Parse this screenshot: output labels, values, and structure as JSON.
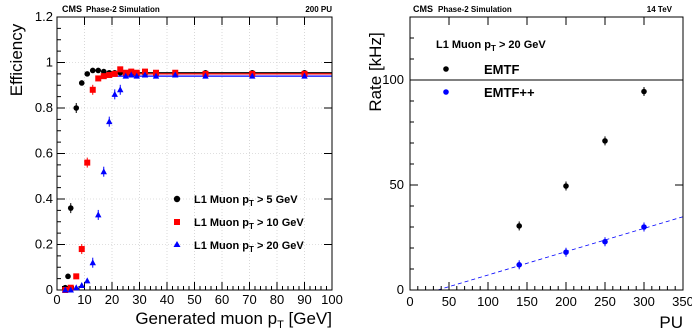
{
  "chart_data": [
    {
      "type": "scatter",
      "header": {
        "experiment": "CMS",
        "label": "Phase-2 Simulation",
        "right": "200 PU"
      },
      "xlabel": "Generated muon p",
      "xlabel_sub": "T",
      "xlabel_unit": " [GeV]",
      "ylabel": "Efficiency",
      "xlim": [
        0,
        100
      ],
      "ylim": [
        0,
        1.2
      ],
      "grid": true,
      "legend_position": "bottom-right",
      "xticks": [
        "0",
        "10",
        "20",
        "30",
        "40",
        "50",
        "60",
        "70",
        "80",
        "90",
        "100"
      ],
      "yticks": [
        "0",
        "0.2",
        "0.4",
        "0.6",
        "0.8",
        "1",
        "1.2"
      ],
      "series": [
        {
          "name_main": "L1 Muon p",
          "name_sub": "T",
          "name_rest": " > 5 GeV",
          "color": "#000000",
          "marker": "circle",
          "plateau": 0.955,
          "x": [
            3,
            4,
            5,
            7,
            9,
            11,
            13,
            15,
            17,
            19,
            21,
            23,
            25,
            27,
            29,
            32,
            36,
            43,
            54,
            71,
            90
          ],
          "y": [
            0.01,
            0.06,
            0.36,
            0.8,
            0.91,
            0.95,
            0.965,
            0.965,
            0.96,
            0.955,
            0.955,
            0.955,
            0.955,
            0.95,
            0.95,
            0.95,
            0.955,
            0.955,
            0.955,
            0.955,
            0.955
          ]
        },
        {
          "name_main": "L1 Muon p",
          "name_sub": "T",
          "name_rest": " > 10 GeV",
          "color": "#ff0000",
          "marker": "square",
          "plateau": 0.95,
          "x": [
            3,
            5,
            7,
            9,
            11,
            13,
            15,
            17,
            19,
            21,
            23,
            25,
            27,
            29,
            32,
            36,
            43,
            54,
            71,
            90
          ],
          "y": [
            0.0,
            0.01,
            0.06,
            0.18,
            0.56,
            0.88,
            0.93,
            0.94,
            0.945,
            0.95,
            0.97,
            0.955,
            0.96,
            0.955,
            0.96,
            0.955,
            0.955,
            0.95,
            0.95,
            0.95
          ]
        },
        {
          "name_main": "L1 Muon p",
          "name_sub": "T",
          "name_rest": " > 20 GeV",
          "color": "#0000ff",
          "marker": "triangle",
          "plateau": 0.94,
          "x": [
            3,
            5,
            7,
            9,
            11,
            13,
            15,
            17,
            19,
            21,
            23,
            25,
            27,
            29,
            32,
            36,
            43,
            54,
            71,
            90
          ],
          "y": [
            0.0,
            0.0,
            0.01,
            0.02,
            0.04,
            0.12,
            0.33,
            0.52,
            0.74,
            0.86,
            0.88,
            0.94,
            0.945,
            0.94,
            0.945,
            0.94,
            0.945,
            0.94,
            0.94,
            0.94
          ]
        }
      ]
    },
    {
      "type": "scatter",
      "header": {
        "experiment": "CMS",
        "label": "Phase-2 Simulation",
        "right": "14 TeV"
      },
      "xlabel": "PU",
      "ylabel": "Rate [kHz]",
      "xlim": [
        0,
        350
      ],
      "ylim": [
        0,
        130
      ],
      "grid": false,
      "legend_position": "top-left",
      "legend_title_main": "L1 Muon p",
      "legend_title_sub": "T",
      "legend_title_rest": " > 20 GeV",
      "xticks": [
        "0",
        "50",
        "100",
        "150",
        "200",
        "250",
        "300",
        "350"
      ],
      "yticks": [
        "0",
        "50",
        "100"
      ],
      "reference_line_y": 100,
      "series": [
        {
          "name": "EMTF",
          "color": "#000000",
          "marker": "circle",
          "x": [
            140,
            200,
            250,
            300
          ],
          "y": [
            30.5,
            49.5,
            71,
            94.5
          ]
        },
        {
          "name": "EMTF++",
          "color": "#0000ff",
          "marker": "circle",
          "fit": "linear",
          "x": [
            140,
            200,
            250,
            300
          ],
          "y": [
            12,
            18,
            23,
            30
          ]
        }
      ]
    }
  ]
}
